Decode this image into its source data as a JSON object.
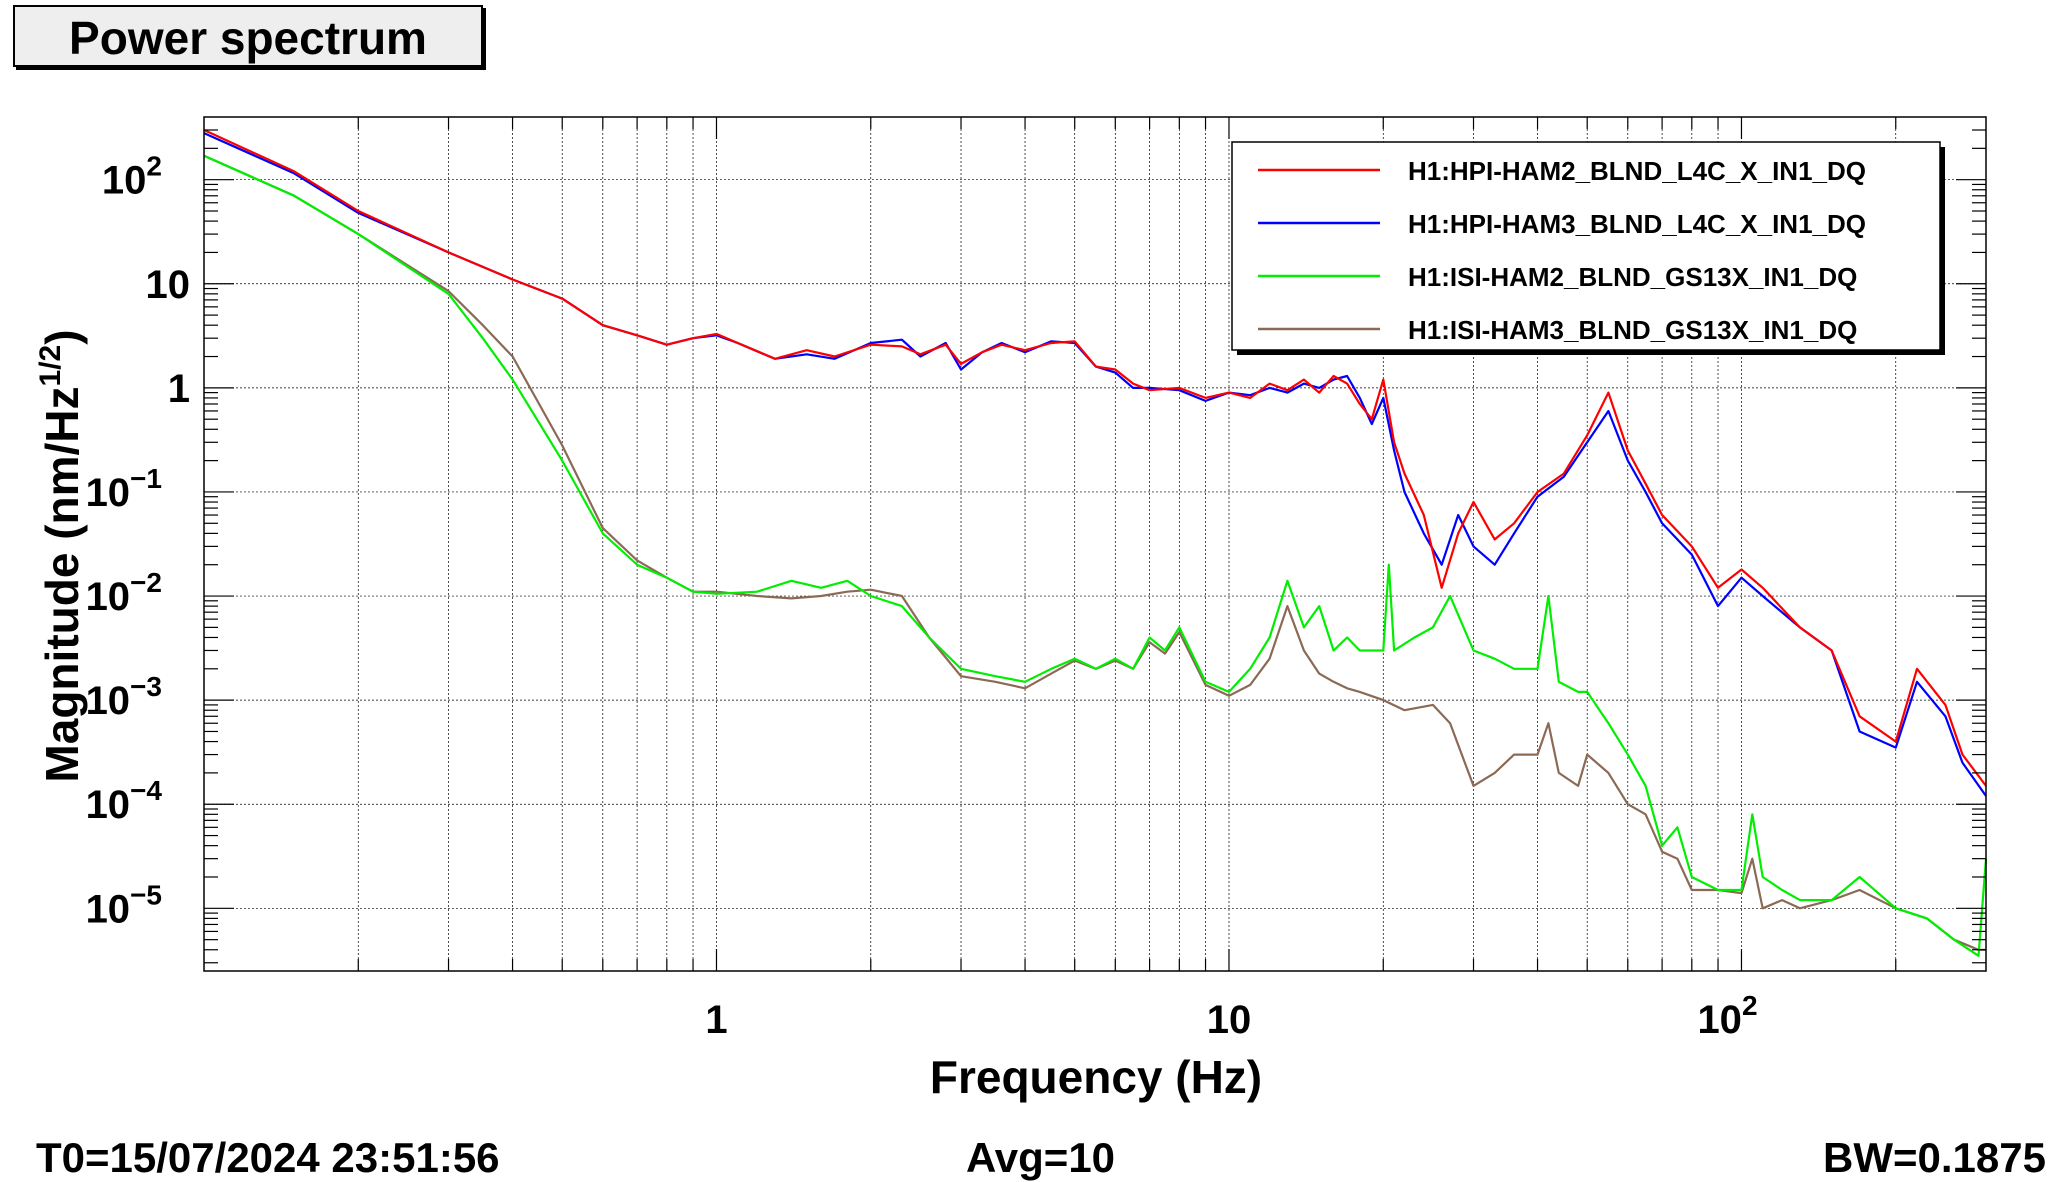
{
  "title": "Power spectrum",
  "footer": {
    "t0": "T0=15/07/2024 23:51:56",
    "avg": "Avg=10",
    "bw": "BW=0.1875"
  },
  "chart_data": {
    "type": "line",
    "title": "Power spectrum",
    "xlabel": "Frequency (Hz)",
    "ylabel_prefix": "Magnitude (nm/Hz",
    "ylabel_sup": "1/2",
    "ylabel_suffix": ")",
    "x_scale": "log",
    "y_scale": "log",
    "xlim": [
      0.1,
      300
    ],
    "ylim": [
      2.5e-06,
      400
    ],
    "grid": true,
    "legend_position": "top-right",
    "x_ticks": [
      {
        "value": 1,
        "base": "1",
        "exp": ""
      },
      {
        "value": 10,
        "base": "10",
        "exp": ""
      },
      {
        "value": 100,
        "base": "10",
        "exp": "2"
      }
    ],
    "y_ticks": [
      {
        "value": 100,
        "base": "10",
        "exp": "2"
      },
      {
        "value": 10,
        "base": "10",
        "exp": ""
      },
      {
        "value": 1,
        "base": "1",
        "exp": ""
      },
      {
        "value": 0.1,
        "base": "10",
        "exp": "−1"
      },
      {
        "value": 0.01,
        "base": "10",
        "exp": "−2"
      },
      {
        "value": 0.001,
        "base": "10",
        "exp": "−3"
      },
      {
        "value": 0.0001,
        "base": "10",
        "exp": "−4"
      },
      {
        "value": 1e-05,
        "base": "10",
        "exp": "−5"
      }
    ],
    "series": [
      {
        "name": "H1:HPI-HAM2_BLND_L4C_X_IN1_DQ",
        "color": "#ff0000",
        "points": [
          [
            0.1,
            300
          ],
          [
            0.15,
            120
          ],
          [
            0.2,
            50
          ],
          [
            0.3,
            20
          ],
          [
            0.4,
            11
          ],
          [
            0.5,
            7.2
          ],
          [
            0.6,
            4
          ],
          [
            0.7,
            3.2
          ],
          [
            0.8,
            2.6
          ],
          [
            0.9,
            3
          ],
          [
            1,
            3.3
          ],
          [
            1.1,
            2.7
          ],
          [
            1.3,
            1.9
          ],
          [
            1.5,
            2.3
          ],
          [
            1.7,
            2
          ],
          [
            2,
            2.6
          ],
          [
            2.3,
            2.5
          ],
          [
            2.5,
            2.1
          ],
          [
            2.8,
            2.6
          ],
          [
            3,
            1.7
          ],
          [
            3.3,
            2.2
          ],
          [
            3.6,
            2.6
          ],
          [
            4,
            2.3
          ],
          [
            4.5,
            2.7
          ],
          [
            5,
            2.8
          ],
          [
            5.5,
            1.6
          ],
          [
            6,
            1.5
          ],
          [
            6.5,
            1.1
          ],
          [
            7,
            0.95
          ],
          [
            8,
            1.0
          ],
          [
            9,
            0.8
          ],
          [
            10,
            0.9
          ],
          [
            11,
            0.8
          ],
          [
            12,
            1.1
          ],
          [
            13,
            0.95
          ],
          [
            14,
            1.2
          ],
          [
            15,
            0.9
          ],
          [
            16,
            1.3
          ],
          [
            17,
            1.1
          ],
          [
            18,
            0.7
          ],
          [
            19,
            0.5
          ],
          [
            20,
            1.2
          ],
          [
            21,
            0.3
          ],
          [
            22,
            0.15
          ],
          [
            24,
            0.06
          ],
          [
            26,
            0.012
          ],
          [
            28,
            0.04
          ],
          [
            30,
            0.08
          ],
          [
            33,
            0.035
          ],
          [
            36,
            0.05
          ],
          [
            40,
            0.1
          ],
          [
            45,
            0.15
          ],
          [
            50,
            0.35
          ],
          [
            55,
            0.9
          ],
          [
            60,
            0.25
          ],
          [
            65,
            0.12
          ],
          [
            70,
            0.06
          ],
          [
            80,
            0.03
          ],
          [
            90,
            0.012
          ],
          [
            100,
            0.018
          ],
          [
            110,
            0.012
          ],
          [
            130,
            0.005
          ],
          [
            150,
            0.003
          ],
          [
            170,
            0.0007
          ],
          [
            200,
            0.0004
          ],
          [
            220,
            0.002
          ],
          [
            250,
            0.0009
          ],
          [
            270,
            0.0003
          ],
          [
            300,
            0.00015
          ]
        ]
      },
      {
        "name": "H1:HPI-HAM3_BLND_L4C_X_IN1_DQ",
        "color": "#0000ff",
        "points": [
          [
            0.1,
            280
          ],
          [
            0.15,
            115
          ],
          [
            0.2,
            48
          ],
          [
            0.3,
            20
          ],
          [
            0.4,
            11
          ],
          [
            0.5,
            7.2
          ],
          [
            0.6,
            4
          ],
          [
            0.7,
            3.2
          ],
          [
            0.8,
            2.6
          ],
          [
            0.9,
            3
          ],
          [
            1,
            3.2
          ],
          [
            1.1,
            2.7
          ],
          [
            1.3,
            1.9
          ],
          [
            1.5,
            2.1
          ],
          [
            1.7,
            1.9
          ],
          [
            2,
            2.7
          ],
          [
            2.3,
            2.9
          ],
          [
            2.5,
            2.0
          ],
          [
            2.8,
            2.7
          ],
          [
            3,
            1.5
          ],
          [
            3.3,
            2.2
          ],
          [
            3.6,
            2.7
          ],
          [
            4,
            2.2
          ],
          [
            4.5,
            2.8
          ],
          [
            5,
            2.7
          ],
          [
            5.5,
            1.6
          ],
          [
            6,
            1.4
          ],
          [
            6.5,
            1.0
          ],
          [
            7,
            1.0
          ],
          [
            8,
            0.95
          ],
          [
            9,
            0.75
          ],
          [
            10,
            0.9
          ],
          [
            11,
            0.85
          ],
          [
            12,
            1.0
          ],
          [
            13,
            0.9
          ],
          [
            14,
            1.1
          ],
          [
            15,
            1.0
          ],
          [
            16,
            1.2
          ],
          [
            17,
            1.3
          ],
          [
            18,
            0.8
          ],
          [
            19,
            0.45
          ],
          [
            20,
            0.8
          ],
          [
            21,
            0.25
          ],
          [
            22,
            0.1
          ],
          [
            24,
            0.04
          ],
          [
            26,
            0.02
          ],
          [
            28,
            0.06
          ],
          [
            30,
            0.03
          ],
          [
            33,
            0.02
          ],
          [
            36,
            0.04
          ],
          [
            40,
            0.09
          ],
          [
            45,
            0.14
          ],
          [
            50,
            0.3
          ],
          [
            55,
            0.6
          ],
          [
            60,
            0.2
          ],
          [
            65,
            0.1
          ],
          [
            70,
            0.05
          ],
          [
            80,
            0.025
          ],
          [
            90,
            0.008
          ],
          [
            100,
            0.015
          ],
          [
            110,
            0.01
          ],
          [
            130,
            0.005
          ],
          [
            150,
            0.003
          ],
          [
            170,
            0.0005
          ],
          [
            200,
            0.00035
          ],
          [
            220,
            0.0015
          ],
          [
            250,
            0.0007
          ],
          [
            270,
            0.00025
          ],
          [
            300,
            0.00012
          ]
        ]
      },
      {
        "name": "H1:ISI-HAM2_BLND_GS13X_IN1_DQ",
        "color": "#00ee00",
        "points": [
          [
            0.1,
            170
          ],
          [
            0.15,
            70
          ],
          [
            0.2,
            30
          ],
          [
            0.3,
            8
          ],
          [
            0.35,
            3
          ],
          [
            0.4,
            1.2
          ],
          [
            0.5,
            0.2
          ],
          [
            0.6,
            0.04
          ],
          [
            0.7,
            0.02
          ],
          [
            0.8,
            0.015
          ],
          [
            0.9,
            0.011
          ],
          [
            1,
            0.0105
          ],
          [
            1.2,
            0.011
          ],
          [
            1.4,
            0.014
          ],
          [
            1.6,
            0.012
          ],
          [
            1.8,
            0.014
          ],
          [
            2,
            0.01
          ],
          [
            2.3,
            0.008
          ],
          [
            2.6,
            0.004
          ],
          [
            3,
            0.002
          ],
          [
            3.5,
            0.0017
          ],
          [
            4,
            0.0015
          ],
          [
            4.5,
            0.002
          ],
          [
            5,
            0.0025
          ],
          [
            5.5,
            0.002
          ],
          [
            6,
            0.0025
          ],
          [
            6.5,
            0.002
          ],
          [
            7,
            0.004
          ],
          [
            7.5,
            0.003
          ],
          [
            8,
            0.005
          ],
          [
            9,
            0.0015
          ],
          [
            10,
            0.0012
          ],
          [
            11,
            0.002
          ],
          [
            12,
            0.004
          ],
          [
            13,
            0.014
          ],
          [
            14,
            0.005
          ],
          [
            15,
            0.008
          ],
          [
            16,
            0.003
          ],
          [
            17,
            0.004
          ],
          [
            18,
            0.003
          ],
          [
            20,
            0.003
          ],
          [
            20.5,
            0.02
          ],
          [
            21,
            0.003
          ],
          [
            23,
            0.004
          ],
          [
            25,
            0.005
          ],
          [
            27,
            0.01
          ],
          [
            30,
            0.003
          ],
          [
            33,
            0.0025
          ],
          [
            36,
            0.002
          ],
          [
            40,
            0.002
          ],
          [
            42,
            0.01
          ],
          [
            44,
            0.0015
          ],
          [
            48,
            0.0012
          ],
          [
            50,
            0.0012
          ],
          [
            55,
            0.0006
          ],
          [
            60,
            0.0003
          ],
          [
            65,
            0.00015
          ],
          [
            70,
            4e-05
          ],
          [
            75,
            6e-05
          ],
          [
            80,
            2e-05
          ],
          [
            90,
            1.5e-05
          ],
          [
            100,
            1.5e-05
          ],
          [
            105,
            8e-05
          ],
          [
            110,
            2e-05
          ],
          [
            120,
            1.5e-05
          ],
          [
            130,
            1.2e-05
          ],
          [
            150,
            1.2e-05
          ],
          [
            170,
            2e-05
          ],
          [
            200,
            1e-05
          ],
          [
            230,
            8e-06
          ],
          [
            260,
            5e-06
          ],
          [
            290,
            3.5e-06
          ],
          [
            300,
            3e-05
          ]
        ]
      },
      {
        "name": "H1:ISI-HAM3_BLND_GS13X_IN1_DQ",
        "color": "#8b6a55",
        "points": [
          [
            0.1,
            170
          ],
          [
            0.15,
            70
          ],
          [
            0.2,
            30
          ],
          [
            0.3,
            8.5
          ],
          [
            0.35,
            4
          ],
          [
            0.4,
            2
          ],
          [
            0.5,
            0.28
          ],
          [
            0.6,
            0.045
          ],
          [
            0.7,
            0.022
          ],
          [
            0.8,
            0.015
          ],
          [
            0.9,
            0.011
          ],
          [
            1,
            0.011
          ],
          [
            1.2,
            0.01
          ],
          [
            1.4,
            0.0095
          ],
          [
            1.6,
            0.01
          ],
          [
            1.8,
            0.011
          ],
          [
            2,
            0.0115
          ],
          [
            2.3,
            0.01
          ],
          [
            2.6,
            0.004
          ],
          [
            3,
            0.0017
          ],
          [
            3.5,
            0.0015
          ],
          [
            4,
            0.0013
          ],
          [
            4.5,
            0.0018
          ],
          [
            5,
            0.0024
          ],
          [
            5.5,
            0.002
          ],
          [
            6,
            0.0024
          ],
          [
            6.5,
            0.002
          ],
          [
            7,
            0.0036
          ],
          [
            7.5,
            0.0028
          ],
          [
            8,
            0.0045
          ],
          [
            9,
            0.0014
          ],
          [
            10,
            0.0011
          ],
          [
            11,
            0.0014
          ],
          [
            12,
            0.0025
          ],
          [
            13,
            0.008
          ],
          [
            14,
            0.003
          ],
          [
            15,
            0.0018
          ],
          [
            16,
            0.0015
          ],
          [
            17,
            0.0013
          ],
          [
            18,
            0.0012
          ],
          [
            20,
            0.001
          ],
          [
            22,
            0.0008
          ],
          [
            25,
            0.0009
          ],
          [
            27,
            0.0006
          ],
          [
            30,
            0.00015
          ],
          [
            33,
            0.0002
          ],
          [
            36,
            0.0003
          ],
          [
            40,
            0.0003
          ],
          [
            42,
            0.0006
          ],
          [
            44,
            0.0002
          ],
          [
            48,
            0.00015
          ],
          [
            50,
            0.0003
          ],
          [
            55,
            0.0002
          ],
          [
            60,
            0.0001
          ],
          [
            65,
            8e-05
          ],
          [
            70,
            3.5e-05
          ],
          [
            75,
            3e-05
          ],
          [
            80,
            1.5e-05
          ],
          [
            90,
            1.5e-05
          ],
          [
            100,
            1.4e-05
          ],
          [
            105,
            3e-05
          ],
          [
            110,
            1e-05
          ],
          [
            120,
            1.2e-05
          ],
          [
            130,
            1e-05
          ],
          [
            150,
            1.2e-05
          ],
          [
            170,
            1.5e-05
          ],
          [
            200,
            1e-05
          ],
          [
            230,
            8e-06
          ],
          [
            260,
            5e-06
          ],
          [
            290,
            4e-06
          ],
          [
            300,
            4e-06
          ]
        ]
      }
    ]
  }
}
